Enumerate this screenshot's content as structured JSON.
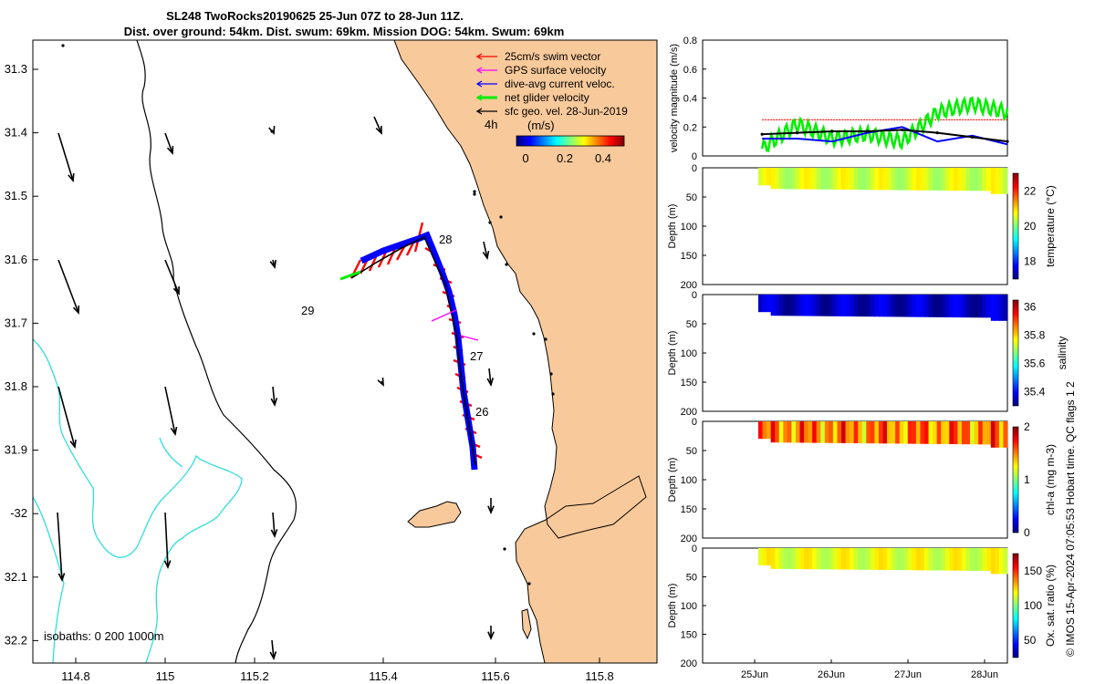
{
  "title_line1": "SL248 TwoRocks20190625 25-Jun 07Z to 28-Jun 11Z.",
  "title_line2": "Dist. over ground: 54km. Dist. swum: 69km. Mission DOG: 54km. Swum: 69km",
  "copyright": "© IMOS 15-Apr-2024 07:05:53 Hobart time. QC flags 1  2",
  "colors": {
    "land": "#f8c99a",
    "isobath": "#33dddd",
    "swim": "#ff0000",
    "gps": "#ff00ff",
    "current": "#0000ff",
    "net": "#00ee00",
    "geo": "#000000"
  },
  "map": {
    "lon_ticks": [
      "114.8",
      "115",
      "115.2",
      "115.4",
      "115.6",
      "115.8"
    ],
    "lat_ticks": [
      "31.3",
      "31.4",
      "31.5",
      "31.6",
      "31.7",
      "31.8",
      "31.9",
      "-32",
      "32.1",
      "32.2"
    ],
    "legend": [
      {
        "label": "25cm/s swim vector",
        "color": "#ff0000"
      },
      {
        "label": "GPS surface velocity",
        "color": "#ff00ff"
      },
      {
        "label": "dive-avg current veloc.",
        "color": "#0000ff"
      },
      {
        "label": "net glider velocity",
        "color": "#00ee00"
      },
      {
        "label": "sfc geo. vel. 28-Jun-2019",
        "color": "#000000"
      }
    ],
    "legend_time": "4h",
    "colorbar_title": "(m/s)",
    "colorbar_ticks": [
      "0",
      "0.2",
      "0.4"
    ],
    "track_day_labels": [
      "28",
      "29",
      "27",
      "26"
    ],
    "isobath_label": "isobaths: 0   200  1000m"
  },
  "chart_data": [
    {
      "type": "line",
      "title": "",
      "ylabel": "velocity magnitude (m/s)",
      "ylim": [
        0,
        0.8
      ],
      "yticks": [
        "0",
        "0.2",
        "0.4",
        "0.6",
        "0.8"
      ],
      "x": [
        25.0,
        25.5,
        26.0,
        26.5,
        27.0,
        27.5,
        28.0,
        28.5
      ],
      "series": [
        {
          "name": "swim speed (25cm/s)",
          "color": "#ff0000",
          "values": [
            0.25,
            0.25,
            0.25,
            0.25,
            0.25,
            0.25,
            0.25,
            0.25
          ]
        },
        {
          "name": "net glider velocity",
          "color": "#00ee00",
          "values": [
            0.05,
            0.22,
            0.12,
            0.15,
            0.1,
            0.3,
            0.36,
            0.3
          ]
        },
        {
          "name": "dive-avg current",
          "color": "#0000ff",
          "values": [
            0.12,
            0.12,
            0.1,
            0.16,
            0.2,
            0.1,
            0.14,
            0.08
          ]
        },
        {
          "name": "sfc geo. vel.",
          "color": "#000000",
          "values": [
            0.15,
            0.16,
            0.17,
            0.17,
            0.18,
            0.16,
            0.13,
            0.1
          ]
        }
      ]
    },
    {
      "type": "heatmap",
      "ylabel": "Depth (m)",
      "yticks": [
        "0",
        "50",
        "100",
        "150",
        "200"
      ],
      "variable": "temperature (°C)",
      "colorbar_ticks": [
        "18",
        "20",
        "22"
      ],
      "clim": [
        17,
        23
      ],
      "typical_value": 20.5
    },
    {
      "type": "heatmap",
      "ylabel": "Depth (m)",
      "yticks": [
        "0",
        "50",
        "100",
        "150",
        "200"
      ],
      "variable": "salinity",
      "colorbar_ticks": [
        "35.4",
        "35.6",
        "35.8",
        "36"
      ],
      "clim": [
        35.3,
        36.05
      ],
      "typical_value": 35.35
    },
    {
      "type": "heatmap",
      "ylabel": "Depth (m)",
      "yticks": [
        "0",
        "50",
        "100",
        "150",
        "200"
      ],
      "variable": "chl-a (mg m-3)",
      "colorbar_ticks": [
        "0",
        "1",
        "2"
      ],
      "clim": [
        0,
        2
      ],
      "typical_value": 1.5
    },
    {
      "type": "heatmap",
      "ylabel": "Depth (m)",
      "yticks": [
        "0",
        "50",
        "100",
        "150",
        "200"
      ],
      "variable": "Ox. sat. ratio (%)",
      "colorbar_ticks": [
        "50",
        "100",
        "150"
      ],
      "clim": [
        25,
        175
      ],
      "typical_value": 115
    }
  ],
  "time_axis": {
    "ticks": [
      "25Jun",
      "26Jun",
      "27Jun",
      "28Jun"
    ]
  }
}
